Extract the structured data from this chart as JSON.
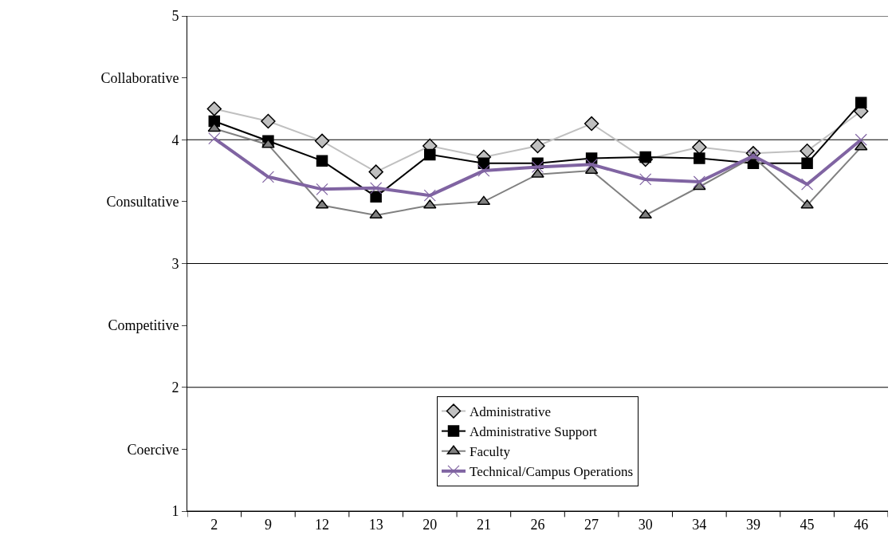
{
  "chart_data": {
    "type": "line",
    "categories": [
      "2",
      "9",
      "12",
      "13",
      "20",
      "21",
      "26",
      "27",
      "30",
      "34",
      "39",
      "45",
      "46"
    ],
    "series": [
      {
        "name": "Administrative",
        "color": "#c0c0c0",
        "marker": "diamond",
        "values": [
          4.25,
          4.15,
          3.99,
          3.74,
          3.95,
          3.86,
          3.95,
          4.13,
          3.84,
          3.94,
          3.89,
          3.91,
          4.23
        ]
      },
      {
        "name": "Administrative Support",
        "color": "#000000",
        "marker": "square",
        "values": [
          4.15,
          3.99,
          3.83,
          3.54,
          3.88,
          3.81,
          3.81,
          3.85,
          3.86,
          3.85,
          3.81,
          3.81,
          4.3
        ]
      },
      {
        "name": "Faculty",
        "color": "#808080",
        "marker": "triangle",
        "values": [
          4.09,
          3.96,
          3.47,
          3.39,
          3.47,
          3.5,
          3.72,
          3.75,
          3.39,
          3.62,
          3.86,
          3.47,
          3.94
        ]
      },
      {
        "name": "Technical/Campus Operations",
        "color": "#8064a2",
        "marker": "cross",
        "values": [
          4.01,
          3.7,
          3.6,
          3.61,
          3.55,
          3.75,
          3.78,
          3.8,
          3.68,
          3.66,
          3.87,
          3.64,
          4.0
        ]
      }
    ],
    "ylim": [
      1,
      5
    ],
    "yticks": [
      1,
      2,
      3,
      4,
      5,
      {
        "value": 1.5,
        "label": "Coercive"
      },
      {
        "value": 2.5,
        "label": "Competitive"
      },
      {
        "value": 3.5,
        "label": "Consultative"
      },
      {
        "value": 4.5,
        "label": "Collaborative"
      }
    ],
    "grid": "y",
    "legend": "bottom",
    "line_style": "solid"
  }
}
